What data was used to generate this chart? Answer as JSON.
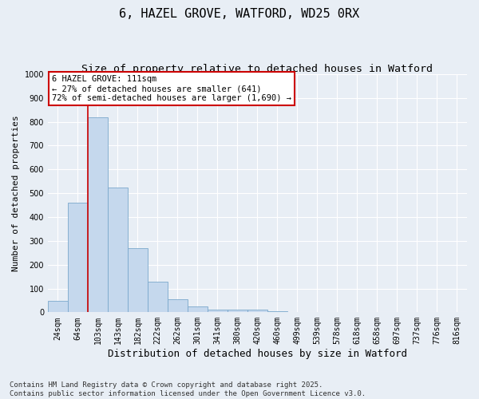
{
  "title": "6, HAZEL GROVE, WATFORD, WD25 0RX",
  "subtitle": "Size of property relative to detached houses in Watford",
  "xlabel": "Distribution of detached houses by size in Watford",
  "ylabel": "Number of detached properties",
  "categories": [
    "24sqm",
    "64sqm",
    "103sqm",
    "143sqm",
    "182sqm",
    "222sqm",
    "262sqm",
    "301sqm",
    "341sqm",
    "380sqm",
    "420sqm",
    "460sqm",
    "499sqm",
    "539sqm",
    "578sqm",
    "618sqm",
    "658sqm",
    "697sqm",
    "737sqm",
    "776sqm",
    "816sqm"
  ],
  "values": [
    47,
    460,
    820,
    525,
    270,
    128,
    55,
    23,
    10,
    10,
    12,
    5,
    0,
    0,
    0,
    0,
    0,
    0,
    0,
    0,
    0
  ],
  "bar_color": "#c5d8ed",
  "bar_edge_color": "#7aa8cc",
  "vline_position": 1.5,
  "vline_color": "#cc0000",
  "ylim": [
    0,
    1000
  ],
  "yticks": [
    0,
    100,
    200,
    300,
    400,
    500,
    600,
    700,
    800,
    900,
    1000
  ],
  "annotation_text": "6 HAZEL GROVE: 111sqm\n← 27% of detached houses are smaller (641)\n72% of semi-detached houses are larger (1,690) →",
  "annotation_box_color": "#cc0000",
  "footer_text": "Contains HM Land Registry data © Crown copyright and database right 2025.\nContains public sector information licensed under the Open Government Licence v3.0.",
  "background_color": "#e8eef5",
  "plot_background_color": "#e8eef5",
  "grid_color": "#ffffff",
  "title_fontsize": 11,
  "subtitle_fontsize": 9.5,
  "xlabel_fontsize": 9,
  "ylabel_fontsize": 8,
  "tick_fontsize": 7,
  "footer_fontsize": 6.5,
  "ann_fontsize": 7.5
}
